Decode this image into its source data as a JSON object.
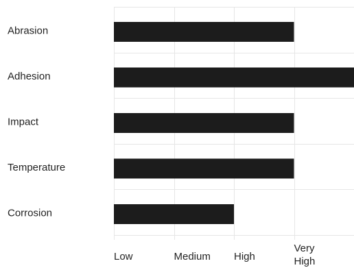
{
  "chart_data": {
    "type": "bar",
    "orientation": "horizontal",
    "categories": [
      "Abrasion",
      "Adhesion",
      "Impact",
      "Temperature",
      "Corrosion"
    ],
    "values": [
      3,
      4,
      3,
      3,
      2
    ],
    "x_ticks": [
      {
        "value": 0,
        "lines": [
          "Low"
        ]
      },
      {
        "value": 1,
        "lines": [
          "Medium"
        ]
      },
      {
        "value": 2,
        "lines": [
          "High"
        ]
      },
      {
        "value": 3,
        "lines": [
          "Very",
          "High"
        ]
      }
    ],
    "xlim": [
      0,
      4
    ],
    "grid": true,
    "bar_color": "#1c1c1c",
    "grid_color": "#e6e6e6"
  }
}
